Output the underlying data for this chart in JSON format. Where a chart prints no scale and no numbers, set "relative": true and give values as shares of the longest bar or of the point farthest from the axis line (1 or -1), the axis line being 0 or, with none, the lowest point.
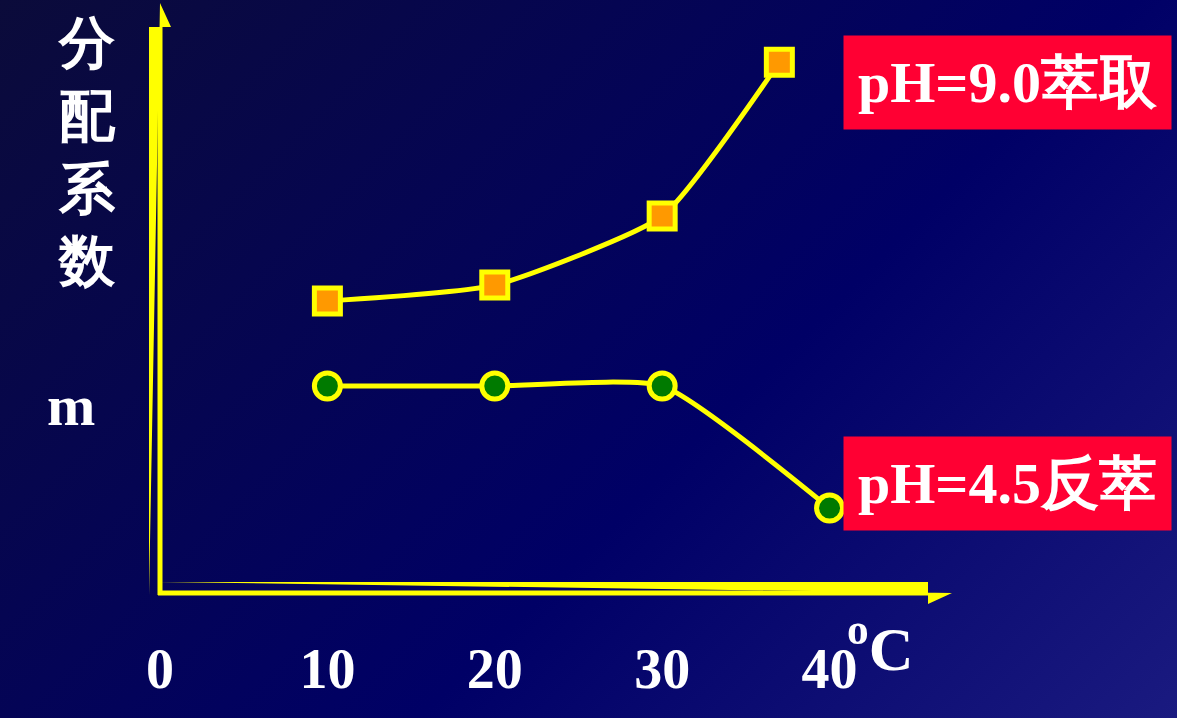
{
  "chart_data": {
    "type": "line",
    "relative": true,
    "ylabel": "分配系数 m",
    "xlabel": "$^{o}$C",
    "xlim": [
      0,
      46
    ],
    "xticks": [
      0,
      10,
      20,
      30,
      40
    ],
    "grid": false,
    "legend": false,
    "series": [
      {
        "name": "pH=9.0萃取",
        "color": "#ffff00",
        "colors": [
          "#ff9900",
          "#ff9900",
          "#ff9900",
          "#ff9900"
        ],
        "marker": "square",
        "x": [
          10,
          20,
          30,
          37
        ],
        "values": [
          0.55,
          0.58,
          0.71,
          1
        ]
      },
      {
        "name": "pH=4.5反萃",
        "color": "#ffff00",
        "colors": [
          "#007a00",
          "#007a00",
          "#007a00",
          "#007a00"
        ],
        "marker": "circle",
        "x": [
          10,
          20,
          30,
          40
        ],
        "values": [
          0.39,
          0.39,
          0.39,
          0.16
        ]
      }
    ]
  }
}
